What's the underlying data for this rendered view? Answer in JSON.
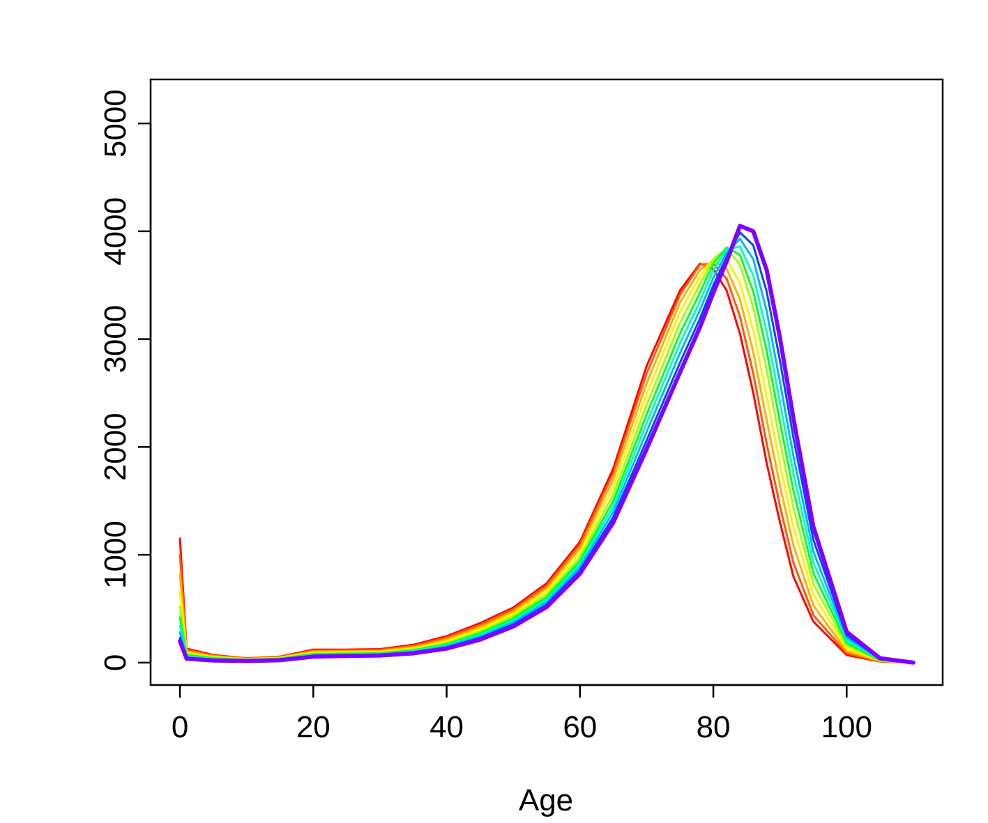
{
  "chart_data": {
    "type": "line",
    "title": "",
    "xlabel": "Age",
    "ylabel": "",
    "xlim": [
      -4.4,
      114.4
    ],
    "ylim": [
      -208,
      5408
    ],
    "xticks": [
      0,
      20,
      40,
      60,
      80,
      100
    ],
    "yticks": [
      0,
      1000,
      2000,
      3000,
      4000,
      5000
    ],
    "xtick_labels": [
      "0",
      "20",
      "40",
      "60",
      "80",
      "100"
    ],
    "ytick_labels": [
      "0",
      "1000",
      "2000",
      "3000",
      "4000",
      "5000"
    ],
    "grid": false,
    "legend": "none",
    "color_scheme": "rainbow (red to violet)",
    "x": [
      0,
      1,
      5,
      10,
      15,
      20,
      25,
      30,
      35,
      40,
      45,
      50,
      55,
      60,
      65,
      70,
      75,
      78,
      80,
      82,
      84,
      86,
      88,
      90,
      92,
      95,
      100,
      105,
      110
    ],
    "series": [
      {
        "color": "#ff0000",
        "values": [
          1150,
          130,
          70,
          40,
          55,
          120,
          120,
          125,
          165,
          245,
          365,
          510,
          735,
          1120,
          1800,
          2750,
          3450,
          3700,
          3650,
          3450,
          3050,
          2500,
          1850,
          1300,
          800,
          380,
          70,
          10,
          0
        ]
      },
      {
        "color": "#ff5a00",
        "values": [
          1000,
          120,
          65,
          38,
          52,
          112,
          113,
          118,
          155,
          232,
          350,
          495,
          715,
          1095,
          1760,
          2680,
          3410,
          3690,
          3700,
          3560,
          3210,
          2680,
          2030,
          1450,
          930,
          440,
          85,
          12,
          0
        ]
      },
      {
        "color": "#ffb000",
        "values": [
          820,
          105,
          58,
          35,
          48,
          102,
          104,
          108,
          143,
          215,
          330,
          475,
          690,
          1060,
          1700,
          2590,
          3340,
          3640,
          3730,
          3650,
          3370,
          2880,
          2250,
          1640,
          1090,
          530,
          105,
          15,
          0
        ]
      },
      {
        "color": "#fff200",
        "values": [
          650,
          92,
          52,
          32,
          44,
          92,
          95,
          99,
          131,
          198,
          310,
          452,
          662,
          1020,
          1630,
          2490,
          3250,
          3580,
          3740,
          3740,
          3520,
          3080,
          2470,
          1840,
          1260,
          630,
          130,
          18,
          0
        ]
      },
      {
        "color": "#a6ff00",
        "values": [
          520,
          80,
          46,
          29,
          40,
          84,
          88,
          92,
          121,
          183,
          290,
          430,
          634,
          980,
          1560,
          2390,
          3150,
          3510,
          3740,
          3840,
          3690,
          3290,
          2710,
          2050,
          1440,
          730,
          155,
          20,
          0
        ]
      },
      {
        "color": "#00ff2a",
        "values": [
          420,
          70,
          40,
          26,
          36,
          78,
          82,
          86,
          113,
          170,
          272,
          410,
          608,
          945,
          1500,
          2300,
          3050,
          3430,
          3700,
          3850,
          3780,
          3440,
          2890,
          2230,
          1600,
          830,
          180,
          24,
          0
        ]
      },
      {
        "color": "#00ffc0",
        "values": [
          340,
          60,
          34,
          22,
          32,
          72,
          76,
          80,
          106,
          160,
          257,
          392,
          585,
          915,
          1450,
          2220,
          2960,
          3350,
          3640,
          3830,
          3860,
          3590,
          3070,
          2410,
          1760,
          930,
          205,
          28,
          0
        ]
      },
      {
        "color": "#00b4ff",
        "values": [
          280,
          50,
          28,
          18,
          28,
          66,
          71,
          75,
          99,
          150,
          242,
          373,
          562,
          885,
          1400,
          2140,
          2870,
          3270,
          3570,
          3800,
          3930,
          3740,
          3260,
          2600,
          1920,
          1030,
          230,
          32,
          0
        ]
      },
      {
        "color": "#0046ff",
        "values": [
          230,
          42,
          24,
          16,
          25,
          60,
          66,
          70,
          92,
          140,
          228,
          353,
          538,
          855,
          1350,
          2060,
          2780,
          3190,
          3500,
          3760,
          3990,
          3870,
          3440,
          2800,
          2090,
          1140,
          255,
          36,
          0
        ]
      },
      {
        "color": "#8000ff",
        "values": [
          200,
          36,
          20,
          14,
          22,
          55,
          62,
          66,
          86,
          130,
          213,
          335,
          515,
          825,
          1300,
          1980,
          2690,
          3110,
          3430,
          3720,
          4050,
          4000,
          3640,
          3010,
          2270,
          1260,
          285,
          40,
          0
        ]
      }
    ]
  }
}
